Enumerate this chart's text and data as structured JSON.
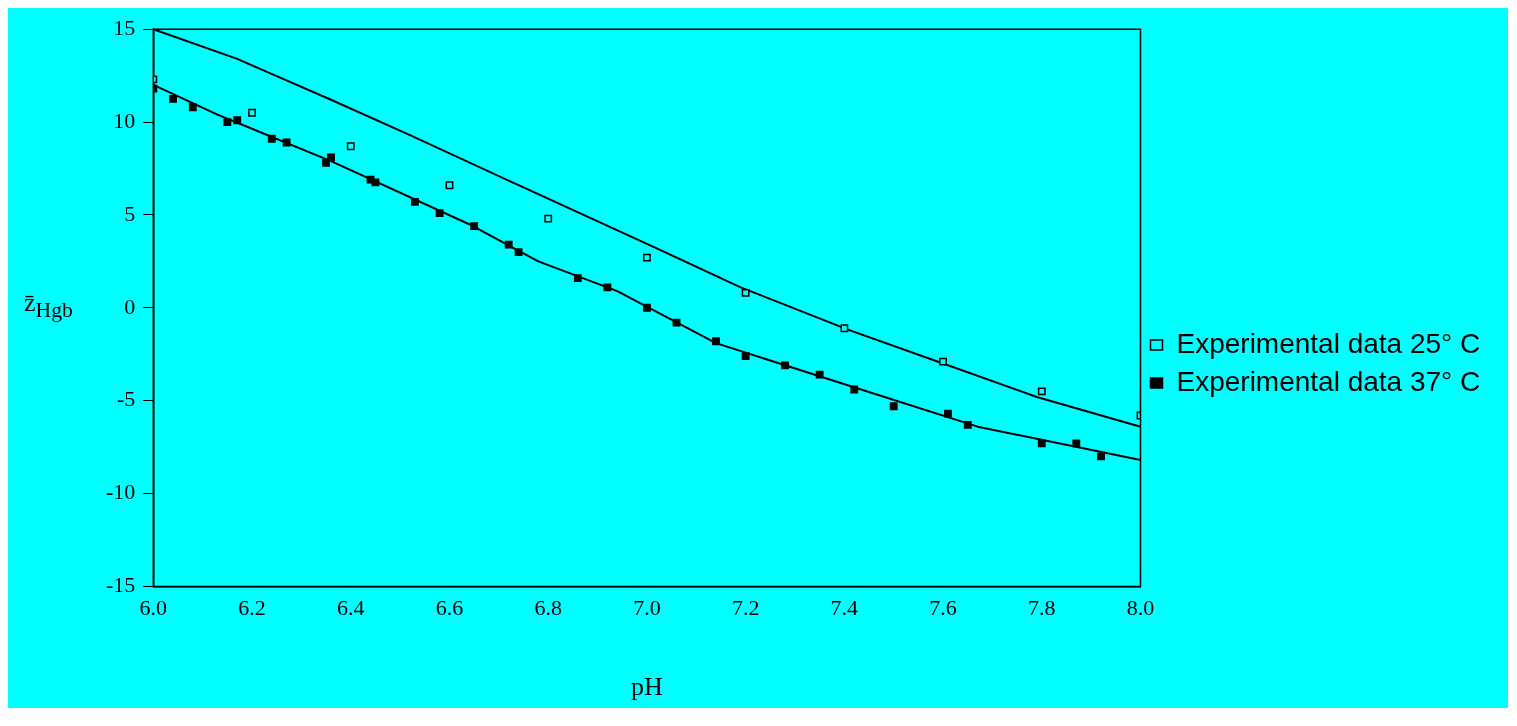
{
  "chart_data": {
    "type": "scatter",
    "xlabel": "pH",
    "ylabel": "z̄$_{Hgb}$",
    "xlim": [
      6.0,
      8.0
    ],
    "ylim": [
      -15,
      15
    ],
    "xticks": [
      {
        "value": 6.0,
        "label": "6.0"
      },
      6.2,
      6.4,
      6.6,
      6.8,
      {
        "value": 7.0,
        "label": "7.0"
      },
      7.2,
      7.4,
      7.6,
      7.8,
      {
        "value": 8.0,
        "label": "8.0"
      }
    ],
    "yticks": [
      -15,
      -10,
      -5,
      0,
      5,
      10,
      15
    ],
    "grid": false,
    "legend": "right",
    "series": [
      {
        "name": "Experimental data 25° C",
        "type": "scatter",
        "marker": "square",
        "color": "#000000",
        "x": [
          6.0,
          6.2,
          6.4,
          6.6,
          6.8,
          7.0,
          7.2,
          7.4,
          7.6,
          7.8,
          8.0
        ],
        "values": [
          12.3,
          10.5,
          8.7,
          6.6,
          4.8,
          2.7,
          0.8,
          -1.1,
          -2.9,
          -4.5,
          -5.8
        ]
      },
      {
        "name": "Experimental data 37° C",
        "type": "scatter",
        "marker": "square",
        "color": "#000000",
        "x": [
          6.0,
          6.04,
          6.08,
          6.15,
          6.17,
          6.24,
          6.27,
          6.35,
          6.36,
          6.44,
          6.45,
          6.53,
          6.58,
          6.65,
          6.72,
          6.74,
          6.86,
          6.92,
          7.0,
          7.06,
          7.14,
          7.2,
          7.28,
          7.35,
          7.42,
          7.5,
          7.61,
          7.65,
          7.8,
          7.87,
          7.92
        ],
        "values": [
          11.8,
          11.25,
          10.8,
          10.0,
          10.1,
          9.1,
          8.9,
          7.8,
          8.1,
          6.9,
          6.75,
          5.7,
          5.1,
          4.4,
          3.4,
          3.0,
          1.6,
          1.1,
          0.0,
          -0.8,
          -1.8,
          -2.6,
          -3.1,
          -3.6,
          -4.4,
          -5.3,
          -5.7,
          -6.3,
          -7.3,
          -7.3,
          -8.0
        ]
      },
      {
        "type": "line",
        "marker": "none",
        "color": "#000000",
        "x": [
          6.0,
          6.17,
          6.36,
          6.52,
          6.74,
          7.02,
          7.19,
          7.41,
          7.6,
          7.79,
          8.0
        ],
        "values": [
          15.0,
          13.4,
          11.2,
          9.3,
          6.6,
          3.2,
          1.1,
          -1.2,
          -3.0,
          -4.8,
          -6.4
        ]
      },
      {
        "type": "line",
        "marker": "none",
        "color": "#000000",
        "x": [
          6.0,
          6.13,
          6.36,
          6.64,
          6.78,
          6.94,
          7.14,
          7.41,
          7.67,
          8.0
        ],
        "values": [
          12.0,
          10.4,
          7.9,
          4.5,
          2.5,
          0.9,
          -1.9,
          -4.2,
          -6.4,
          -8.2
        ]
      }
    ]
  }
}
